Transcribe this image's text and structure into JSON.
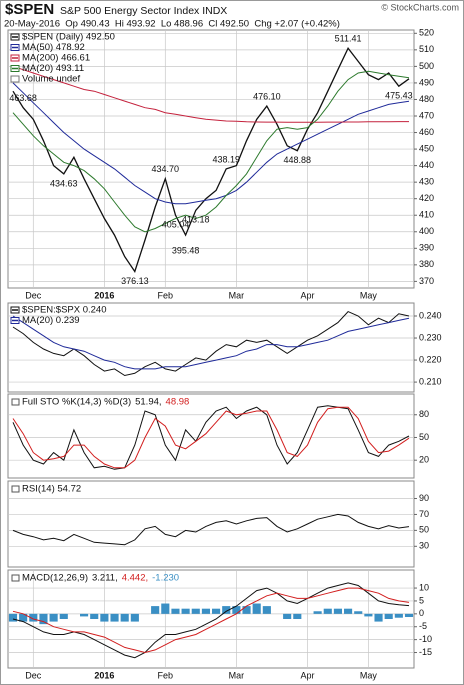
{
  "chart_data": [
    {
      "type": "line",
      "title": "$SPEN",
      "subtitle": "S&P 500 Energy Sector Index INDX",
      "info": "20-May-2016  Op 490.43  Hi 493.92  Lo 488.96  Cl 492.50  Chg +2.07 (+0.42%)",
      "source": "© StockCharts.com",
      "legend": "stack",
      "legend_extra": "Volume undef",
      "grid": true,
      "categories": [
        null,
        null,
        "Dec",
        null,
        null,
        null,
        null,
        null,
        null,
        "2016",
        null,
        null,
        null,
        null,
        null,
        "Feb",
        null,
        null,
        null,
        null,
        null,
        null,
        "Mar",
        null,
        null,
        null,
        null,
        null,
        null,
        "Apr",
        null,
        null,
        null,
        null,
        null,
        "May",
        null,
        null,
        null,
        null
      ],
      "ylim": [
        366,
        522
      ],
      "yticks": [
        370,
        380,
        390,
        400,
        410,
        420,
        430,
        440,
        450,
        460,
        470,
        480,
        490,
        500,
        510,
        520
      ],
      "series": [
        {
          "name": "$SPEN (Daily) 492.50",
          "color": "#111111",
          "values": [
            485,
            475,
            468,
            455,
            440,
            435,
            445,
            432,
            420,
            408,
            398,
            385,
            376,
            395,
            415,
            432,
            410,
            398,
            413,
            420,
            425,
            438,
            440,
            455,
            468,
            476,
            465,
            452,
            449,
            462,
            472,
            485,
            498,
            511,
            503,
            495,
            492,
            496,
            488,
            492.5
          ]
        },
        {
          "name": "MA(50) 478.92",
          "color": "#1f2a99",
          "values": [
            490,
            484,
            478,
            472,
            466,
            460,
            455,
            450,
            446,
            442,
            438,
            433,
            428,
            424,
            420,
            418,
            417,
            417,
            418,
            419,
            420,
            422,
            425,
            430,
            436,
            442,
            447,
            450,
            453,
            456,
            459,
            462,
            465,
            468,
            471,
            473,
            475,
            477,
            478,
            478.92
          ]
        },
        {
          "name": "MA(200) 466.61",
          "color": "#c4213c",
          "values": [
            500,
            498,
            496,
            494,
            492,
            490,
            488,
            486,
            485,
            483,
            481,
            479,
            477,
            475,
            474,
            472,
            471,
            470,
            469,
            468,
            467.5,
            467,
            466.8,
            466.5,
            466.4,
            466.3,
            466.3,
            466.2,
            466.2,
            466.2,
            466.2,
            466.3,
            466.3,
            466.4,
            466.4,
            466.5,
            466.5,
            466.5,
            466.6,
            466.61
          ]
        },
        {
          "name": "MA(20) 493.11",
          "color": "#2d7a2d",
          "values": [
            472,
            465,
            458,
            452,
            447,
            442,
            440,
            437,
            432,
            426,
            418,
            410,
            403,
            400,
            402,
            405,
            408,
            410,
            408,
            410,
            415,
            422,
            428,
            435,
            445,
            455,
            462,
            463,
            462,
            463,
            468,
            476,
            485,
            492,
            496,
            497,
            496,
            495,
            494,
            493.11
          ]
        }
      ],
      "annotations": [
        "463.68",
        "434.63",
        "434.70",
        "438.19",
        "476.10",
        "511.41",
        "475.43",
        "448.88",
        "413.18",
        "405.04",
        "395.48",
        "376.13"
      ]
    },
    {
      "type": "line",
      "legend": "stack",
      "grid": true,
      "ylim": [
        0.2055,
        0.2459
      ],
      "yticks": [
        {
          "value": 0.21,
          "label": "0.210"
        },
        {
          "value": 0.22,
          "label": "0.220"
        },
        {
          "value": 0.23,
          "label": "0.230"
        },
        {
          "value": 0.24,
          "label": "0.240"
        }
      ],
      "series": [
        {
          "name": "$SPEN:$SPX 0.240",
          "color": "#111111",
          "values": [
            0.235,
            0.232,
            0.228,
            0.225,
            0.223,
            0.222,
            0.225,
            0.222,
            0.218,
            0.215,
            0.216,
            0.213,
            0.214,
            0.217,
            0.219,
            0.216,
            0.215,
            0.218,
            0.221,
            0.22,
            0.224,
            0.227,
            0.226,
            0.229,
            0.228,
            0.229,
            0.226,
            0.223,
            0.226,
            0.229,
            0.231,
            0.234,
            0.237,
            0.242,
            0.24,
            0.236,
            0.239,
            0.237,
            0.241,
            0.24
          ]
        },
        {
          "name": "MA(20) 0.239",
          "color": "#1f2a99",
          "values": [
            0.24,
            0.237,
            0.234,
            0.231,
            0.228,
            0.226,
            0.225,
            0.224,
            0.222,
            0.22,
            0.219,
            0.217,
            0.216,
            0.216,
            0.216,
            0.217,
            0.217,
            0.217,
            0.218,
            0.219,
            0.22,
            0.221,
            0.222,
            0.224,
            0.225,
            0.227,
            0.227,
            0.226,
            0.226,
            0.227,
            0.228,
            0.229,
            0.231,
            0.233,
            0.234,
            0.235,
            0.236,
            0.237,
            0.238,
            0.239
          ]
        }
      ]
    },
    {
      "type": "line",
      "title": "Full STO %K(14,3) %D(3)",
      "legend": "inline",
      "grid": true,
      "ylim": [
        -3.5,
        107.4
      ],
      "yticks": [
        20,
        50,
        80
      ],
      "series": [
        {
          "name": "51.94,",
          "color": "#111111",
          "values": [
            70,
            40,
            20,
            15,
            30,
            20,
            60,
            30,
            10,
            12,
            8,
            10,
            40,
            85,
            80,
            40,
            20,
            60,
            45,
            70,
            85,
            90,
            75,
            85,
            90,
            80,
            40,
            15,
            30,
            60,
            90,
            92,
            90,
            88,
            60,
            30,
            25,
            40,
            45,
            51.94
          ]
        },
        {
          "name": "48.98",
          "color": "#d21e1e",
          "values": [
            75,
            55,
            30,
            20,
            22,
            25,
            40,
            40,
            25,
            15,
            10,
            10,
            20,
            50,
            75,
            65,
            40,
            35,
            45,
            55,
            70,
            85,
            80,
            82,
            85,
            85,
            60,
            30,
            25,
            40,
            70,
            88,
            90,
            90,
            75,
            45,
            30,
            32,
            40,
            48.98
          ]
        }
      ]
    },
    {
      "type": "line",
      "legend": "inline",
      "grid": true,
      "ylim": [
        4,
        112
      ],
      "yticks": [
        30,
        50,
        70,
        90
      ],
      "series": [
        {
          "name": "RSI(14) 54.72",
          "color": "#111111",
          "values": [
            50,
            45,
            42,
            38,
            40,
            37,
            45,
            40,
            35,
            34,
            33,
            32,
            38,
            52,
            55,
            45,
            42,
            50,
            48,
            55,
            60,
            62,
            58,
            62,
            65,
            66,
            55,
            48,
            52,
            58,
            64,
            67,
            70,
            68,
            60,
            55,
            52,
            56,
            53,
            54.72
          ]
        }
      ]
    },
    {
      "type": "line",
      "title": "MACD(12,26,9)",
      "legend": "inline",
      "grid": true,
      "categories": [
        null,
        null,
        "Dec",
        null,
        null,
        null,
        null,
        null,
        null,
        "2016",
        null,
        null,
        null,
        null,
        null,
        "Feb",
        null,
        null,
        null,
        null,
        null,
        null,
        "Mar",
        null,
        null,
        null,
        null,
        null,
        null,
        "Apr",
        null,
        null,
        null,
        null,
        null,
        "May",
        null,
        null,
        null,
        null
      ],
      "ylim": [
        -21,
        17
      ],
      "yticks": [
        10,
        5,
        0,
        -5,
        -10,
        -15
      ],
      "series": [
        {
          "name": "3.211,",
          "color": "#111111",
          "values": [
            -2,
            -3,
            -5,
            -7,
            -8,
            -8,
            -7,
            -8,
            -10,
            -12,
            -14,
            -16,
            -17,
            -15,
            -11,
            -8,
            -8,
            -7,
            -6,
            -4,
            -2,
            1,
            3,
            6,
            9,
            10,
            8,
            5,
            4,
            6,
            8,
            10,
            11,
            12,
            11,
            8,
            5,
            4,
            3.5,
            3.211
          ]
        },
        {
          "name": "4.442,",
          "color": "#d21e1e",
          "values": [
            1,
            0,
            -2,
            -3,
            -5,
            -6,
            -7,
            -7,
            -8,
            -9,
            -11,
            -13,
            -14,
            -15,
            -14,
            -12,
            -10,
            -9,
            -8,
            -6,
            -4,
            -2,
            0,
            3,
            5,
            7,
            8,
            7,
            6,
            6,
            7,
            8,
            9,
            10,
            10,
            9,
            8,
            6,
            5,
            4.442
          ]
        },
        {
          "name": "-1.230",
          "type": "bar",
          "color": "#3a8fc4",
          "values": [
            -3,
            -3,
            -3,
            -4,
            -3,
            -2,
            0,
            -1,
            -2,
            -3,
            -3,
            -3,
            -3,
            0,
            3,
            4,
            2,
            2,
            2,
            2,
            2,
            3,
            3,
            3,
            4,
            3,
            0,
            -2,
            -2,
            0,
            1,
            2,
            2,
            2,
            1,
            -1,
            -3,
            -2,
            -1.5,
            -1.23
          ]
        }
      ]
    }
  ]
}
